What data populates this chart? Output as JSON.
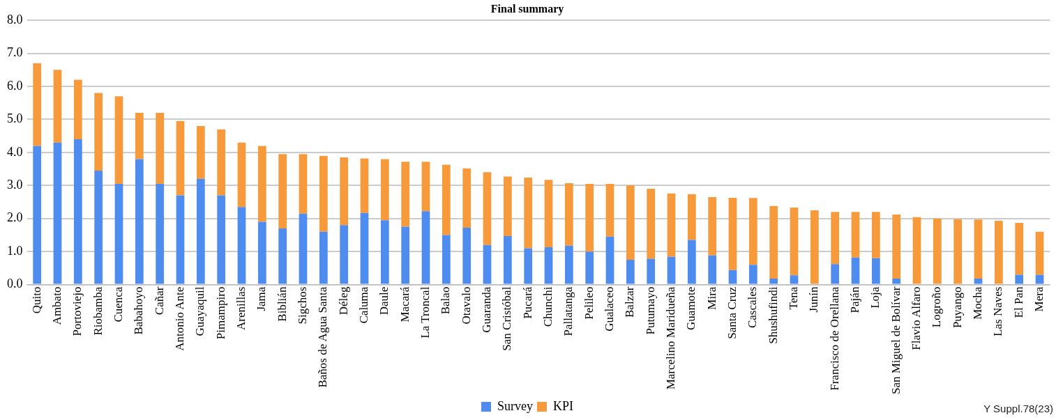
{
  "chart_data": {
    "type": "bar",
    "title": "Final summary",
    "stacked": true,
    "grid": "y",
    "legend": "bottom",
    "categories": [
      "Quito",
      "Ambato",
      "Portoviejo",
      "Riobamba",
      "Cuenca",
      "Babahoyo",
      "Cañar",
      "Antonio Ante",
      "Guayaquil",
      "Pimampiro",
      "Arenillas",
      "Jama",
      "Biblián",
      "Sigchos",
      "Baños de Agua Santa",
      "Déleg",
      "Caluma",
      "Daule",
      "Macará",
      "La Troncal",
      "Balao",
      "Otavalo",
      "Guaranda",
      "San Cristóbal",
      "Pucará",
      "Chunchi",
      "Pallatanga",
      "Pelileo",
      "Gualaceo",
      "Balzar",
      "Putumayo",
      "Marcelino Maridueña",
      "Guamote",
      "Mira",
      "Santa Cruz",
      "Cascales",
      "Shushufindi",
      "Tena",
      "Junín",
      "Francisco de Orellana",
      "Paján",
      "Loja",
      "San Miguel de Bolívar",
      "Flavio Alfaro",
      "Logroño",
      "Puyango",
      "Mocha",
      "Las Naves",
      "El Pan",
      "Mera"
    ],
    "series": [
      {
        "name": "Survey",
        "color": "#4f8cf0",
        "values": [
          4.2,
          4.3,
          4.4,
          3.45,
          3.05,
          3.8,
          3.05,
          2.7,
          3.2,
          2.7,
          2.35,
          1.9,
          1.7,
          2.15,
          1.6,
          1.8,
          2.17,
          1.95,
          1.75,
          2.22,
          1.5,
          1.72,
          1.2,
          1.47,
          1.1,
          1.13,
          1.18,
          1.0,
          1.45,
          0.75,
          0.78,
          0.84,
          1.35,
          0.88,
          0.44,
          0.6,
          0.18,
          0.28,
          0,
          0.62,
          0.82,
          0.8,
          0.18,
          0,
          0,
          0,
          0.18,
          0,
          0.3,
          0.3
        ]
      },
      {
        "name": "KPI",
        "color": "#f79a3c",
        "values": [
          2.5,
          2.2,
          1.8,
          2.35,
          2.65,
          1.4,
          2.15,
          2.25,
          1.6,
          2.0,
          1.95,
          2.3,
          2.25,
          1.8,
          2.3,
          2.05,
          1.65,
          1.85,
          1.97,
          1.5,
          2.13,
          1.8,
          2.2,
          1.8,
          2.14,
          2.04,
          1.89,
          2.05,
          1.6,
          2.25,
          2.12,
          1.92,
          1.39,
          1.77,
          2.19,
          2.02,
          2.2,
          2.05,
          2.25,
          1.58,
          1.38,
          1.4,
          1.94,
          2.04,
          2.0,
          1.98,
          1.79,
          1.93,
          1.57,
          1.3
        ]
      }
    ],
    "ylim": [
      0,
      8
    ],
    "yticks": [
      {
        "value": 0,
        "label": "0.0"
      },
      {
        "value": 1,
        "label": "1.0"
      },
      {
        "value": 2,
        "label": "2.0"
      },
      {
        "value": 3,
        "label": "3.0"
      },
      {
        "value": 4,
        "label": "4.0"
      },
      {
        "value": 5,
        "label": "5.0"
      },
      {
        "value": 6,
        "label": "6.0"
      },
      {
        "value": 7,
        "label": "7.0"
      },
      {
        "value": 8,
        "label": "8.0"
      }
    ],
    "annotations": [
      "Y Suppl.78(23)"
    ]
  }
}
